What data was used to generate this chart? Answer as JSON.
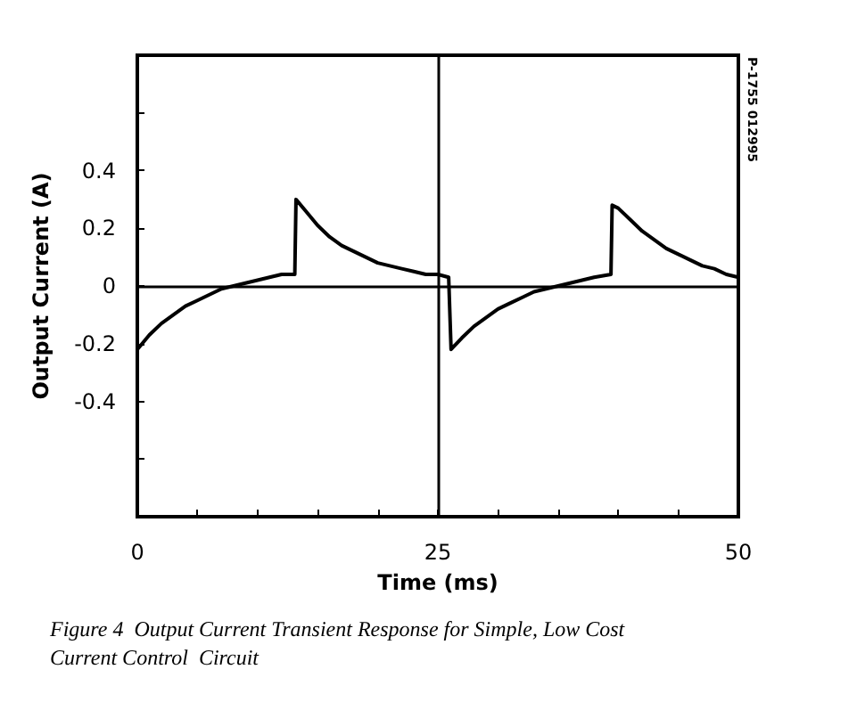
{
  "chart_data": {
    "type": "line",
    "xlabel": "Time (ms)",
    "ylabel": "Output Current (A)",
    "annotations": [
      "P-1755 012995",
      "Figure 4  Output Current Transient Response for Simple, Low Cost Current Control  Circuit"
    ],
    "xlim": [
      0,
      50
    ],
    "xticks": [
      0,
      {
        "value": 5,
        "label": null
      },
      {
        "value": 10,
        "label": null
      },
      {
        "value": 15,
        "label": null
      },
      {
        "value": 20,
        "label": null
      },
      25,
      {
        "value": 30,
        "label": null
      },
      {
        "value": 35,
        "label": null
      },
      {
        "value": 40,
        "label": null
      },
      {
        "value": 45,
        "label": null
      },
      50
    ],
    "ylim": [
      -0.8,
      0.8
    ],
    "yticks": [
      {
        "value": -0.6,
        "label": null
      },
      {
        "value": -0.4,
        "label": "-0.4"
      },
      {
        "value": -0.2,
        "label": "-0.2"
      },
      0,
      {
        "value": 0.2,
        "label": "0.2"
      },
      {
        "value": 0.4,
        "label": "0.4"
      },
      {
        "value": 0.6,
        "label": null
      }
    ],
    "grid": false,
    "marker": "none",
    "line_style": "solid",
    "ref_lines": [
      {
        "axis": "y",
        "value": 0,
        "color": "#000000"
      },
      {
        "axis": "x",
        "value": 25,
        "color": "#000000"
      }
    ],
    "series": [
      {
        "color": "#000000",
        "x": [
          0,
          1,
          2,
          3,
          4,
          5,
          6,
          7,
          8,
          9,
          10,
          11,
          12,
          13.1,
          13.2,
          14,
          15,
          16,
          17,
          18,
          19,
          20,
          21,
          22,
          23,
          24,
          25,
          25.9,
          26.1,
          27,
          28,
          29,
          30,
          31,
          32,
          33,
          34,
          35,
          36,
          37,
          38,
          39.4,
          39.5,
          40,
          41,
          42,
          43,
          44,
          45,
          46,
          47,
          48,
          49,
          50
        ],
        "values": [
          -0.22,
          -0.17,
          -0.13,
          -0.1,
          -0.07,
          -0.05,
          -0.03,
          -0.01,
          0,
          0.01,
          0.02,
          0.03,
          0.04,
          0.04,
          0.3,
          0.26,
          0.21,
          0.17,
          0.14,
          0.12,
          0.1,
          0.08,
          0.07,
          0.06,
          0.05,
          0.04,
          0.04,
          0.03,
          -0.22,
          -0.18,
          -0.14,
          -0.11,
          -0.08,
          -0.06,
          -0.04,
          -0.02,
          -0.01,
          0,
          0.01,
          0.02,
          0.03,
          0.04,
          0.28,
          0.27,
          0.23,
          0.19,
          0.16,
          0.13,
          0.11,
          0.09,
          0.07,
          0.06,
          0.04,
          0.03
        ]
      }
    ]
  }
}
